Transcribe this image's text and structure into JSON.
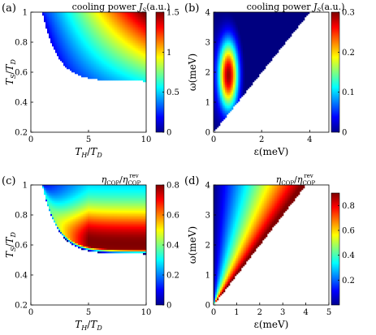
{
  "chart_data": [
    {
      "type": "heatmap",
      "panel_label": "(a)",
      "title": "cooling power J_S (a.u.)",
      "xlabel": "T_H/T_D",
      "ylabel": "T_S/T_D",
      "xlim": [
        0,
        10
      ],
      "ylim": [
        0.2,
        1
      ],
      "xticks": [
        "0",
        "5",
        "10"
      ],
      "yticks": [
        "0.2",
        "0.4",
        "0.6",
        "0.8",
        "1"
      ],
      "colorbar": {
        "min": 0,
        "max": 1.5,
        "ticks": [
          "0",
          "0.5",
          "1",
          "1.5"
        ]
      },
      "region": "colored for T_H/T_D > 1 above boundary T_S ≈ 0.54 + 0.46·exp(-(T_H/T_D - 1)/1.3); white elsewhere",
      "peak": {
        "x": 10,
        "y": 1,
        "value": 1.5
      }
    },
    {
      "type": "heatmap",
      "panel_label": "(b)",
      "title": "cooling power J_S (a.u.)",
      "xlabel": "ε(meV)",
      "ylabel": "ω(meV)",
      "xlim": [
        0,
        4.8
      ],
      "ylim": [
        0,
        4
      ],
      "xticks": [
        "0",
        "2",
        "4"
      ],
      "yticks": [
        "0",
        "1",
        "2",
        "3",
        "4"
      ],
      "colorbar": {
        "min": 0,
        "max": 0.3,
        "ticks": [
          "0",
          "0.1",
          "0.2",
          "0.3"
        ]
      },
      "region": "colored for ω > ε",
      "peak": {
        "x": 0.6,
        "y": 1.9,
        "value": 0.3
      }
    },
    {
      "type": "heatmap",
      "panel_label": "(c)",
      "title": "η_COP / η_COP^rev",
      "xlabel": "T_H/T_D",
      "ylabel": "T_S/T_D",
      "xlim": [
        0,
        10
      ],
      "ylim": [
        0.2,
        1
      ],
      "xticks": [
        "0",
        "5",
        "10"
      ],
      "yticks": [
        "0.2",
        "0.4",
        "0.6",
        "0.8",
        "1"
      ],
      "colorbar": {
        "min": 0,
        "max": 0.8,
        "ticks": [
          "0",
          "0.2",
          "0.4",
          "0.6",
          "0.8"
        ]
      },
      "region": "colored for T_H/T_D > 1 above same boundary as (a)",
      "peak": {
        "x": 10,
        "y": 0.6,
        "value": 0.8
      }
    },
    {
      "type": "heatmap",
      "panel_label": "(d)",
      "title": "η_COP / η_COP^rev",
      "xlabel": "ε(meV)",
      "ylabel": "ω(meV)",
      "xlim": [
        0,
        5
      ],
      "ylim": [
        0,
        4
      ],
      "xticks": [
        "0",
        "1",
        "2",
        "3",
        "4",
        "5"
      ],
      "yticks": [
        "0",
        "1",
        "2",
        "3",
        "4"
      ],
      "colorbar": {
        "min": 0,
        "max": 0.9,
        "ticks": [
          "0.2",
          "0.4",
          "0.6",
          "0.8"
        ]
      },
      "region": "colored for ω > ε; value ≈ 0.9·ε/ω",
      "peak": {
        "x": 4,
        "y": 4,
        "value": 0.9
      }
    }
  ]
}
